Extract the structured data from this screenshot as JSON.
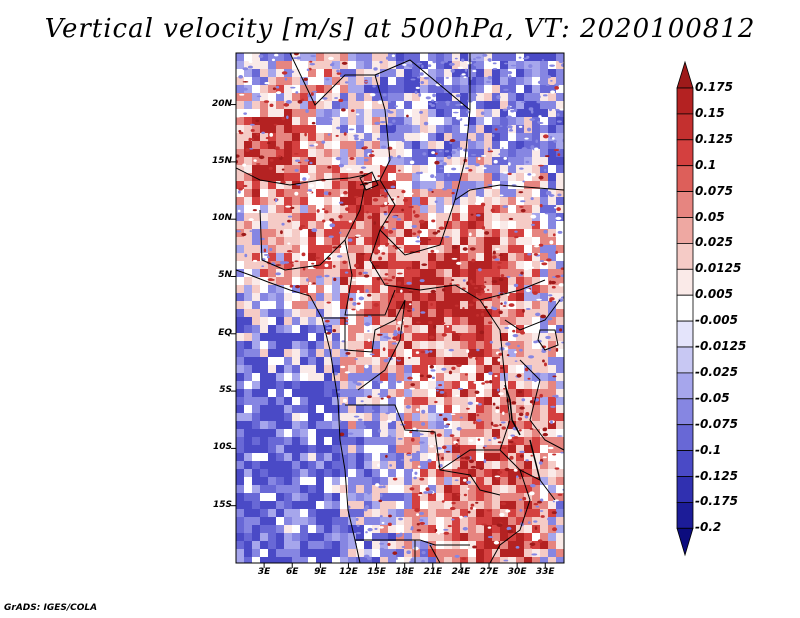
{
  "title": "Vertical velocity [m/s] at 500hPa, VT: 2020100812",
  "credit": "GrADS: IGES/COLA",
  "map": {
    "variable": "Vertical velocity",
    "units": "m/s",
    "level": "500hPa",
    "valid_time": "2020100812",
    "lat_ticks": [
      "20N",
      "15N",
      "10N",
      "5N",
      "EQ",
      "5S",
      "10S",
      "15S"
    ],
    "lat_values": [
      20,
      15,
      10,
      5,
      0,
      -5,
      -10,
      -15
    ],
    "lon_ticks": [
      "3E",
      "6E",
      "9E",
      "12E",
      "15E",
      "18E",
      "21E",
      "24E",
      "27E",
      "30E",
      "33E"
    ],
    "lon_values": [
      3,
      6,
      9,
      12,
      15,
      18,
      21,
      24,
      27,
      30,
      33
    ],
    "lat_range": [
      -20,
      24.5
    ],
    "lon_range": [
      0,
      35
    ]
  },
  "colorbar": {
    "levels": [
      "0.175",
      "0.15",
      "0.125",
      "0.1",
      "0.075",
      "0.05",
      "0.025",
      "0.0125",
      "0.005",
      "-0.005",
      "-0.0125",
      "-0.025",
      "-0.05",
      "-0.075",
      "-0.1",
      "-0.125",
      "-0.175",
      "-0.2"
    ],
    "colors": [
      "#9e1a1a",
      "#b42222",
      "#c4302f",
      "#d4403f",
      "#dd5f5a",
      "#e68580",
      "#eea8a2",
      "#f5cbc6",
      "#faeae8",
      "#ffffff",
      "#e4e4fb",
      "#c8c8f3",
      "#a6a6ec",
      "#8686e2",
      "#6868d6",
      "#4a4ac6",
      "#3030b0",
      "#1c1c98",
      "#0c0c7e"
    ],
    "top_arrow_color": "#a71c1c",
    "bottom_arrow_color": "#1a0a96"
  }
}
